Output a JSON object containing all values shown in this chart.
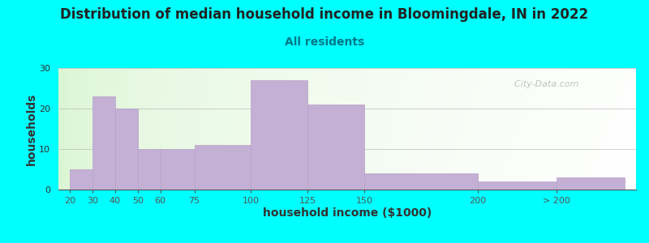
{
  "title": "Distribution of median household income in Bloomingdale, IN in 2022",
  "subtitle": "All residents",
  "xlabel": "household income ($1000)",
  "ylabel": "households",
  "background_color": "#00FFFF",
  "bar_color": "#C4B0D5",
  "bar_edge_color": "#B8A0C8",
  "values": [
    5,
    23,
    20,
    10,
    10,
    11,
    27,
    21,
    4,
    2,
    3
  ],
  "bar_positions": [
    20,
    30,
    40,
    50,
    60,
    75,
    100,
    125,
    150,
    200,
    235
  ],
  "bar_widths": [
    10,
    10,
    10,
    10,
    15,
    25,
    25,
    25,
    50,
    35,
    30
  ],
  "ylim": [
    0,
    30
  ],
  "yticks": [
    0,
    10,
    20,
    30
  ],
  "xtick_positions": [
    20,
    30,
    40,
    50,
    60,
    75,
    100,
    125,
    150,
    200,
    235
  ],
  "xtick_labels": [
    "20",
    "30",
    "40",
    "50",
    "60",
    "75",
    "100",
    "125",
    "150",
    "200",
    "> 200"
  ],
  "xlim_left": 15,
  "xlim_right": 270,
  "title_fontsize": 12,
  "subtitle_fontsize": 10,
  "axis_label_fontsize": 10,
  "title_color": "#222222",
  "subtitle_color": "#007788",
  "watermark_text": "  City-Data.com",
  "tick_label_fontsize": 8
}
